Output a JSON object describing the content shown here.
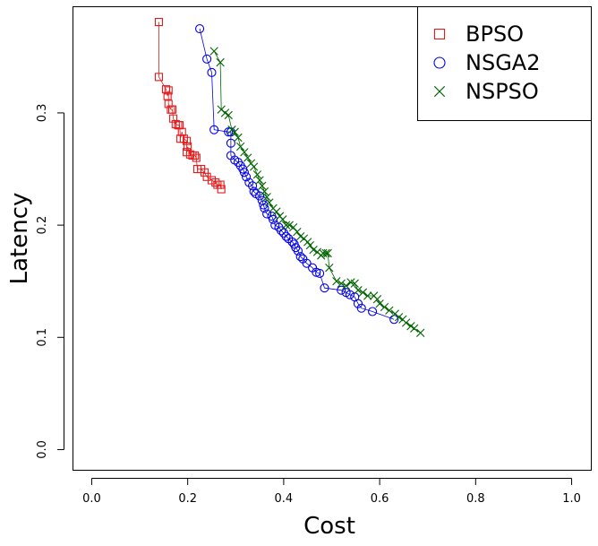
{
  "chart_data": {
    "type": "scatter",
    "xlabel": "Cost",
    "ylabel": "Latency",
    "xlim": [
      -0.04,
      1.04
    ],
    "ylim": [
      -0.018,
      0.395
    ],
    "xticks": [
      "0.0",
      "0.2",
      "0.4",
      "0.6",
      "0.8",
      "1.0"
    ],
    "yticks": [
      "0.0",
      "0.1",
      "0.2",
      "0.3"
    ],
    "grid": false,
    "legend_position": "top-right",
    "series": [
      {
        "name": "BPSO",
        "marker": "square",
        "color": "#e41a1c",
        "points": [
          [
            0.14,
            0.381
          ],
          [
            0.14,
            0.332
          ],
          [
            0.155,
            0.321
          ],
          [
            0.16,
            0.32
          ],
          [
            0.158,
            0.315
          ],
          [
            0.16,
            0.308
          ],
          [
            0.165,
            0.303
          ],
          [
            0.168,
            0.303
          ],
          [
            0.17,
            0.295
          ],
          [
            0.175,
            0.29
          ],
          [
            0.18,
            0.289
          ],
          [
            0.183,
            0.289
          ],
          [
            0.188,
            0.283
          ],
          [
            0.185,
            0.277
          ],
          [
            0.192,
            0.277
          ],
          [
            0.198,
            0.275
          ],
          [
            0.2,
            0.27
          ],
          [
            0.198,
            0.265
          ],
          [
            0.205,
            0.263
          ],
          [
            0.21,
            0.262
          ],
          [
            0.215,
            0.262
          ],
          [
            0.218,
            0.26
          ],
          [
            0.22,
            0.25
          ],
          [
            0.228,
            0.25
          ],
          [
            0.235,
            0.247
          ],
          [
            0.24,
            0.243
          ],
          [
            0.25,
            0.24
          ],
          [
            0.258,
            0.238
          ],
          [
            0.262,
            0.236
          ],
          [
            0.268,
            0.236
          ],
          [
            0.27,
            0.232
          ]
        ]
      },
      {
        "name": "NSGA2",
        "marker": "circle",
        "color": "#0000ee",
        "points": [
          [
            0.225,
            0.375
          ],
          [
            0.24,
            0.348
          ],
          [
            0.25,
            0.336
          ],
          [
            0.255,
            0.285
          ],
          [
            0.285,
            0.283
          ],
          [
            0.29,
            0.283
          ],
          [
            0.29,
            0.273
          ],
          [
            0.29,
            0.262
          ],
          [
            0.298,
            0.258
          ],
          [
            0.305,
            0.256
          ],
          [
            0.31,
            0.253
          ],
          [
            0.315,
            0.25
          ],
          [
            0.318,
            0.247
          ],
          [
            0.322,
            0.243
          ],
          [
            0.328,
            0.238
          ],
          [
            0.335,
            0.235
          ],
          [
            0.338,
            0.23
          ],
          [
            0.342,
            0.228
          ],
          [
            0.35,
            0.226
          ],
          [
            0.355,
            0.222
          ],
          [
            0.358,
            0.218
          ],
          [
            0.36,
            0.215
          ],
          [
            0.365,
            0.21
          ],
          [
            0.375,
            0.208
          ],
          [
            0.378,
            0.205
          ],
          [
            0.382,
            0.2
          ],
          [
            0.39,
            0.198
          ],
          [
            0.395,
            0.195
          ],
          [
            0.4,
            0.193
          ],
          [
            0.405,
            0.19
          ],
          [
            0.41,
            0.188
          ],
          [
            0.418,
            0.185
          ],
          [
            0.422,
            0.183
          ],
          [
            0.425,
            0.18
          ],
          [
            0.43,
            0.177
          ],
          [
            0.435,
            0.172
          ],
          [
            0.44,
            0.17
          ],
          [
            0.448,
            0.166
          ],
          [
            0.46,
            0.162
          ],
          [
            0.468,
            0.158
          ],
          [
            0.475,
            0.157
          ],
          [
            0.485,
            0.144
          ],
          [
            0.52,
            0.142
          ],
          [
            0.53,
            0.14
          ],
          [
            0.538,
            0.138
          ],
          [
            0.548,
            0.136
          ],
          [
            0.555,
            0.13
          ],
          [
            0.562,
            0.126
          ],
          [
            0.585,
            0.123
          ],
          [
            0.63,
            0.116
          ]
        ]
      },
      {
        "name": "NSPSO",
        "marker": "cross",
        "color": "#006400",
        "points": [
          [
            0.255,
            0.355
          ],
          [
            0.268,
            0.345
          ],
          [
            0.27,
            0.303
          ],
          [
            0.278,
            0.3
          ],
          [
            0.285,
            0.298
          ],
          [
            0.292,
            0.285
          ],
          [
            0.298,
            0.283
          ],
          [
            0.305,
            0.278
          ],
          [
            0.31,
            0.27
          ],
          [
            0.318,
            0.265
          ],
          [
            0.325,
            0.26
          ],
          [
            0.332,
            0.255
          ],
          [
            0.338,
            0.252
          ],
          [
            0.345,
            0.245
          ],
          [
            0.35,
            0.24
          ],
          [
            0.355,
            0.235
          ],
          [
            0.36,
            0.23
          ],
          [
            0.365,
            0.225
          ],
          [
            0.37,
            0.22
          ],
          [
            0.378,
            0.215
          ],
          [
            0.385,
            0.212
          ],
          [
            0.392,
            0.208
          ],
          [
            0.398,
            0.205
          ],
          [
            0.405,
            0.2
          ],
          [
            0.412,
            0.2
          ],
          [
            0.42,
            0.198
          ],
          [
            0.428,
            0.194
          ],
          [
            0.435,
            0.19
          ],
          [
            0.442,
            0.188
          ],
          [
            0.45,
            0.185
          ],
          [
            0.455,
            0.182
          ],
          [
            0.462,
            0.178
          ],
          [
            0.47,
            0.176
          ],
          [
            0.478,
            0.173
          ],
          [
            0.482,
            0.175
          ],
          [
            0.488,
            0.175
          ],
          [
            0.492,
            0.175
          ],
          [
            0.495,
            0.162
          ],
          [
            0.51,
            0.15
          ],
          [
            0.52,
            0.148
          ],
          [
            0.53,
            0.146
          ],
          [
            0.54,
            0.149
          ],
          [
            0.548,
            0.148
          ],
          [
            0.555,
            0.142
          ],
          [
            0.565,
            0.14
          ],
          [
            0.575,
            0.137
          ],
          [
            0.588,
            0.137
          ],
          [
            0.595,
            0.134
          ],
          [
            0.6,
            0.13
          ],
          [
            0.61,
            0.127
          ],
          [
            0.62,
            0.124
          ],
          [
            0.632,
            0.121
          ],
          [
            0.64,
            0.118
          ],
          [
            0.648,
            0.116
          ],
          [
            0.655,
            0.113
          ],
          [
            0.665,
            0.11
          ],
          [
            0.672,
            0.108
          ],
          [
            0.685,
            0.104
          ]
        ]
      }
    ]
  }
}
